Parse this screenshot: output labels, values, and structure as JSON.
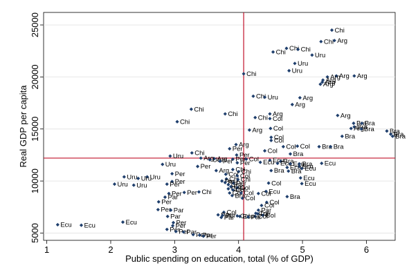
{
  "chart_data": {
    "type": "scatter",
    "title": "",
    "xlabel": "Public spending on education, total (% of GDP)",
    "ylabel": "Real GDP per capita",
    "xlim": [
      0.95,
      6.45
    ],
    "ylim": [
      4300,
      26200
    ],
    "x_ticks": [
      1,
      2,
      3,
      4,
      5,
      6
    ],
    "y_ticks": [
      5000,
      10000,
      15000,
      20000,
      25000
    ],
    "grid": true,
    "legend": "none",
    "marker_color": "#1f3f6d",
    "reference_line_color": "#c0102a",
    "reference_lines": {
      "x": 4.08,
      "y": 12200
    },
    "points": [
      {
        "x": 5.46,
        "y": 24500,
        "label": "Chi"
      },
      {
        "x": 5.29,
        "y": 23400,
        "label": "Chi"
      },
      {
        "x": 5.5,
        "y": 23500,
        "label": "Arg"
      },
      {
        "x": 4.75,
        "y": 22750,
        "label": "Chi"
      },
      {
        "x": 4.93,
        "y": 22650,
        "label": "Chi"
      },
      {
        "x": 4.54,
        "y": 22400,
        "label": "Chi"
      },
      {
        "x": 5.15,
        "y": 22100,
        "label": "Uru"
      },
      {
        "x": 4.88,
        "y": 21300,
        "label": "Uru"
      },
      {
        "x": 4.79,
        "y": 20600,
        "label": "Uru"
      },
      {
        "x": 4.08,
        "y": 20300,
        "label": "Chi"
      },
      {
        "x": 5.53,
        "y": 20100,
        "label": "Arg"
      },
      {
        "x": 5.81,
        "y": 20100,
        "label": "Arg"
      },
      {
        "x": 5.39,
        "y": 20000,
        "label": "Arg"
      },
      {
        "x": 5.32,
        "y": 19700,
        "label": "Arg"
      },
      {
        "x": 5.31,
        "y": 19500,
        "label": "Arg"
      },
      {
        "x": 5.28,
        "y": 19300,
        "label": "Arg"
      },
      {
        "x": 4.23,
        "y": 18150,
        "label": "Chi"
      },
      {
        "x": 4.41,
        "y": 18050,
        "label": "Uru"
      },
      {
        "x": 4.96,
        "y": 18000,
        "label": "Arg"
      },
      {
        "x": 4.84,
        "y": 17350,
        "label": "Arg"
      },
      {
        "x": 3.26,
        "y": 16900,
        "label": "Chi"
      },
      {
        "x": 3.79,
        "y": 16450,
        "label": "Chi"
      },
      {
        "x": 4.49,
        "y": 16450,
        "label": "Arg"
      },
      {
        "x": 4.26,
        "y": 16100,
        "label": "Chi"
      },
      {
        "x": 4.49,
        "y": 16000,
        "label": "Col"
      },
      {
        "x": 5.55,
        "y": 16300,
        "label": "Arg"
      },
      {
        "x": 3.04,
        "y": 15700,
        "label": "Chi"
      },
      {
        "x": 5.8,
        "y": 15550,
        "label": "Bra"
      },
      {
        "x": 5.93,
        "y": 15550,
        "label": "Bra"
      },
      {
        "x": 5.81,
        "y": 15200,
        "label": "Bra"
      },
      {
        "x": 5.76,
        "y": 15050,
        "label": "Arg"
      },
      {
        "x": 5.92,
        "y": 15000,
        "label": "Bra"
      },
      {
        "x": 4.5,
        "y": 15050,
        "label": "Col"
      },
      {
        "x": 4.17,
        "y": 14900,
        "label": "Arg"
      },
      {
        "x": 6.32,
        "y": 14800,
        "label": "Bra"
      },
      {
        "x": 6.38,
        "y": 14500,
        "label": "Bra"
      },
      {
        "x": 6.41,
        "y": 14300,
        "label": "Bra"
      },
      {
        "x": 5.62,
        "y": 14300,
        "label": "Bra"
      },
      {
        "x": 4.51,
        "y": 14200,
        "label": "Col"
      },
      {
        "x": 4.51,
        "y": 13900,
        "label": "Col"
      },
      {
        "x": 3.96,
        "y": 13500,
        "label": "Arg"
      },
      {
        "x": 4.7,
        "y": 13300,
        "label": "Col"
      },
      {
        "x": 4.92,
        "y": 13350,
        "label": "Col"
      },
      {
        "x": 5.26,
        "y": 13300,
        "label": "Bra"
      },
      {
        "x": 5.44,
        "y": 13300,
        "label": "Bra"
      },
      {
        "x": 3.86,
        "y": 13100,
        "label": "Per"
      },
      {
        "x": 4.41,
        "y": 12900,
        "label": "Col"
      },
      {
        "x": 3.27,
        "y": 12700,
        "label": "Chi"
      },
      {
        "x": 4.81,
        "y": 12600,
        "label": "Bra"
      },
      {
        "x": 3.97,
        "y": 12500,
        "label": "Per"
      },
      {
        "x": 2.93,
        "y": 12400,
        "label": "Uru"
      },
      {
        "x": 3.41,
        "y": 12200,
        "label": "Arg"
      },
      {
        "x": 3.62,
        "y": 12150,
        "label": "Arg"
      },
      {
        "x": 3.55,
        "y": 12050,
        "label": "Uru"
      },
      {
        "x": 3.91,
        "y": 12100,
        "label": "Per"
      },
      {
        "x": 4.12,
        "y": 12100,
        "label": "Col"
      },
      {
        "x": 4.49,
        "y": 12000,
        "label": "Ecu"
      },
      {
        "x": 4.66,
        "y": 11900,
        "label": "Bra"
      },
      {
        "x": 3.71,
        "y": 11900,
        "label": "Per"
      },
      {
        "x": 4.34,
        "y": 11800,
        "label": "Ecu"
      },
      {
        "x": 3.98,
        "y": 11750,
        "label": "Per"
      },
      {
        "x": 4.61,
        "y": 11700,
        "label": "Ecu"
      },
      {
        "x": 4.81,
        "y": 11650,
        "label": "Ecu"
      },
      {
        "x": 4.95,
        "y": 11650,
        "label": "Bra"
      },
      {
        "x": 5.3,
        "y": 11700,
        "label": "Ecu"
      },
      {
        "x": 2.81,
        "y": 11600,
        "label": "Uru"
      },
      {
        "x": 3.36,
        "y": 11400,
        "label": "Per"
      },
      {
        "x": 4.95,
        "y": 11400,
        "label": "Ecu"
      },
      {
        "x": 4.76,
        "y": 11300,
        "label": "Ecu"
      },
      {
        "x": 4.99,
        "y": 11200,
        "label": "Ecu"
      },
      {
        "x": 3.91,
        "y": 11100,
        "label": "Chi"
      },
      {
        "x": 3.65,
        "y": 11000,
        "label": "Arg"
      },
      {
        "x": 4.51,
        "y": 11000,
        "label": "Bra"
      },
      {
        "x": 4.78,
        "y": 10950,
        "label": "Bra"
      },
      {
        "x": 4.0,
        "y": 10900,
        "label": "Chi"
      },
      {
        "x": 2.96,
        "y": 10700,
        "label": "Per"
      },
      {
        "x": 3.8,
        "y": 10650,
        "label": "Col"
      },
      {
        "x": 3.98,
        "y": 10500,
        "label": "Col"
      },
      {
        "x": 2.21,
        "y": 10400,
        "label": "Uru"
      },
      {
        "x": 2.57,
        "y": 10400,
        "label": "Uru"
      },
      {
        "x": 2.43,
        "y": 10250,
        "label": "Uru"
      },
      {
        "x": 3.81,
        "y": 10200,
        "label": "Chi"
      },
      {
        "x": 3.99,
        "y": 10150,
        "label": "Chi"
      },
      {
        "x": 3.74,
        "y": 10000,
        "label": "Per"
      },
      {
        "x": 4.97,
        "y": 10300,
        "label": "Ecu"
      },
      {
        "x": 2.96,
        "y": 9950,
        "label": "Per"
      },
      {
        "x": 3.79,
        "y": 9850,
        "label": "Per"
      },
      {
        "x": 3.92,
        "y": 9800,
        "label": "Per"
      },
      {
        "x": 4.47,
        "y": 9800,
        "label": "Col"
      },
      {
        "x": 2.88,
        "y": 9700,
        "label": "Per"
      },
      {
        "x": 2.06,
        "y": 9700,
        "label": "Uru"
      },
      {
        "x": 2.36,
        "y": 9600,
        "label": "Uru"
      },
      {
        "x": 3.84,
        "y": 9650,
        "label": "Col"
      },
      {
        "x": 4.99,
        "y": 9750,
        "label": "Ecu"
      },
      {
        "x": 3.88,
        "y": 9450,
        "label": "Ecu"
      },
      {
        "x": 3.98,
        "y": 9350,
        "label": "Col"
      },
      {
        "x": 3.84,
        "y": 9250,
        "label": "Col"
      },
      {
        "x": 3.91,
        "y": 9150,
        "label": "Col"
      },
      {
        "x": 4.43,
        "y": 9000,
        "label": "Ecu"
      },
      {
        "x": 3.38,
        "y": 8950,
        "label": "Chi"
      },
      {
        "x": 3.15,
        "y": 8900,
        "label": "Per"
      },
      {
        "x": 2.91,
        "y": 8800,
        "label": "Per"
      },
      {
        "x": 3.86,
        "y": 8850,
        "label": "Col"
      },
      {
        "x": 4.04,
        "y": 8850,
        "label": "Col"
      },
      {
        "x": 4.31,
        "y": 8800,
        "label": "Col"
      },
      {
        "x": 3.9,
        "y": 8600,
        "label": "Bra"
      },
      {
        "x": 4.76,
        "y": 8500,
        "label": "Bra"
      },
      {
        "x": 2.85,
        "y": 8450,
        "label": "Par"
      },
      {
        "x": 4.06,
        "y": 8350,
        "label": "Col"
      },
      {
        "x": 2.75,
        "y": 8000,
        "label": "Per"
      },
      {
        "x": 4.44,
        "y": 7950,
        "label": "Col"
      },
      {
        "x": 4.36,
        "y": 7650,
        "label": "Col"
      },
      {
        "x": 2.74,
        "y": 7250,
        "label": "Per"
      },
      {
        "x": 2.94,
        "y": 7200,
        "label": "Par"
      },
      {
        "x": 4.31,
        "y": 7200,
        "label": "Par"
      },
      {
        "x": 3.77,
        "y": 7000,
        "label": "Col"
      },
      {
        "x": 4.27,
        "y": 6900,
        "label": "Col"
      },
      {
        "x": 4.3,
        "y": 6850,
        "label": "Par"
      },
      {
        "x": 3.68,
        "y": 6750,
        "label": "Par"
      },
      {
        "x": 3.75,
        "y": 6700,
        "label": "Per"
      },
      {
        "x": 3.98,
        "y": 6650,
        "label": "Col"
      },
      {
        "x": 4.02,
        "y": 6600,
        "label": "Ecu"
      },
      {
        "x": 4.38,
        "y": 6700,
        "label": "Col"
      },
      {
        "x": 4.26,
        "y": 6600,
        "label": "Col"
      },
      {
        "x": 2.89,
        "y": 6600,
        "label": "Par"
      },
      {
        "x": 3.73,
        "y": 6500,
        "label": "Par"
      },
      {
        "x": 4.15,
        "y": 6550,
        "label": "Par"
      },
      {
        "x": 2.98,
        "y": 6000,
        "label": "Per"
      },
      {
        "x": 2.19,
        "y": 6050,
        "label": "Ecu"
      },
      {
        "x": 1.17,
        "y": 5800,
        "label": "Ecu"
      },
      {
        "x": 1.54,
        "y": 5750,
        "label": "Ecu"
      },
      {
        "x": 2.97,
        "y": 5700,
        "label": "Per"
      },
      {
        "x": 2.88,
        "y": 5350,
        "label": "Per"
      },
      {
        "x": 3.02,
        "y": 5150,
        "label": "Per"
      },
      {
        "x": 3.14,
        "y": 5100,
        "label": "Par"
      },
      {
        "x": 3.29,
        "y": 4850,
        "label": "Per"
      },
      {
        "x": 3.39,
        "y": 4800,
        "label": "Par"
      },
      {
        "x": 3.45,
        "y": 4700,
        "label": "Per"
      }
    ]
  }
}
